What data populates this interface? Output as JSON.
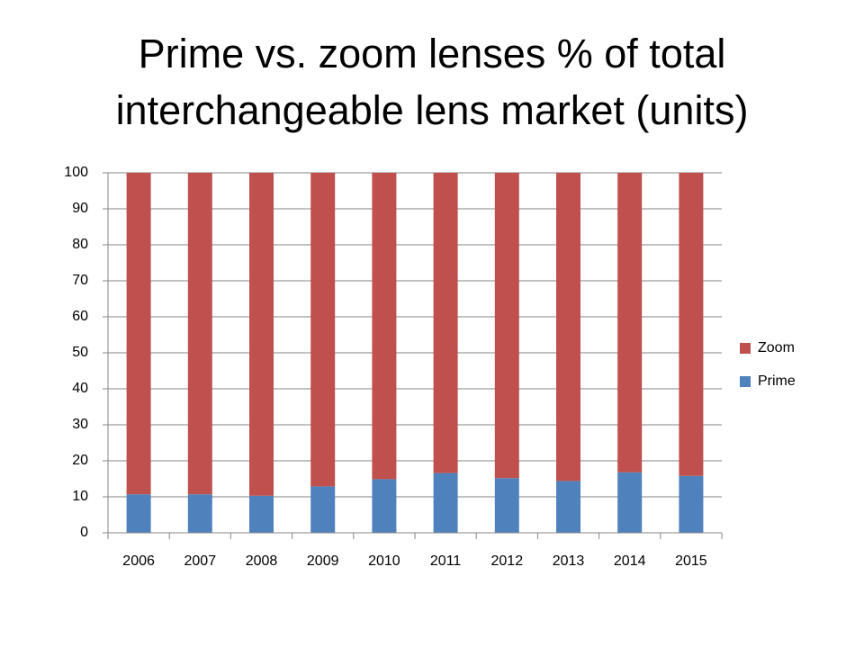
{
  "chart_data": {
    "type": "stacked_bar",
    "title": "Prime vs. zoom lenses % of total interchangeable lens market (units)",
    "categories": [
      "2006",
      "2007",
      "2008",
      "2009",
      "2010",
      "2011",
      "2012",
      "2013",
      "2014",
      "2015"
    ],
    "series": [
      {
        "name": "Prime",
        "color": "#4f81bd",
        "values": [
          10.7,
          10.7,
          10.3,
          12.9,
          14.9,
          16.6,
          15.2,
          14.4,
          16.8,
          15.8
        ]
      },
      {
        "name": "Zoom",
        "color": "#c0504d",
        "values": [
          89.3,
          89.3,
          89.7,
          87.1,
          85.1,
          83.4,
          84.8,
          85.6,
          83.2,
          84.2
        ]
      }
    ],
    "ylim": [
      0,
      100
    ],
    "yticks": [
      0,
      10,
      20,
      30,
      40,
      50,
      60,
      70,
      80,
      90,
      100
    ],
    "grid": true,
    "legend": "right"
  }
}
